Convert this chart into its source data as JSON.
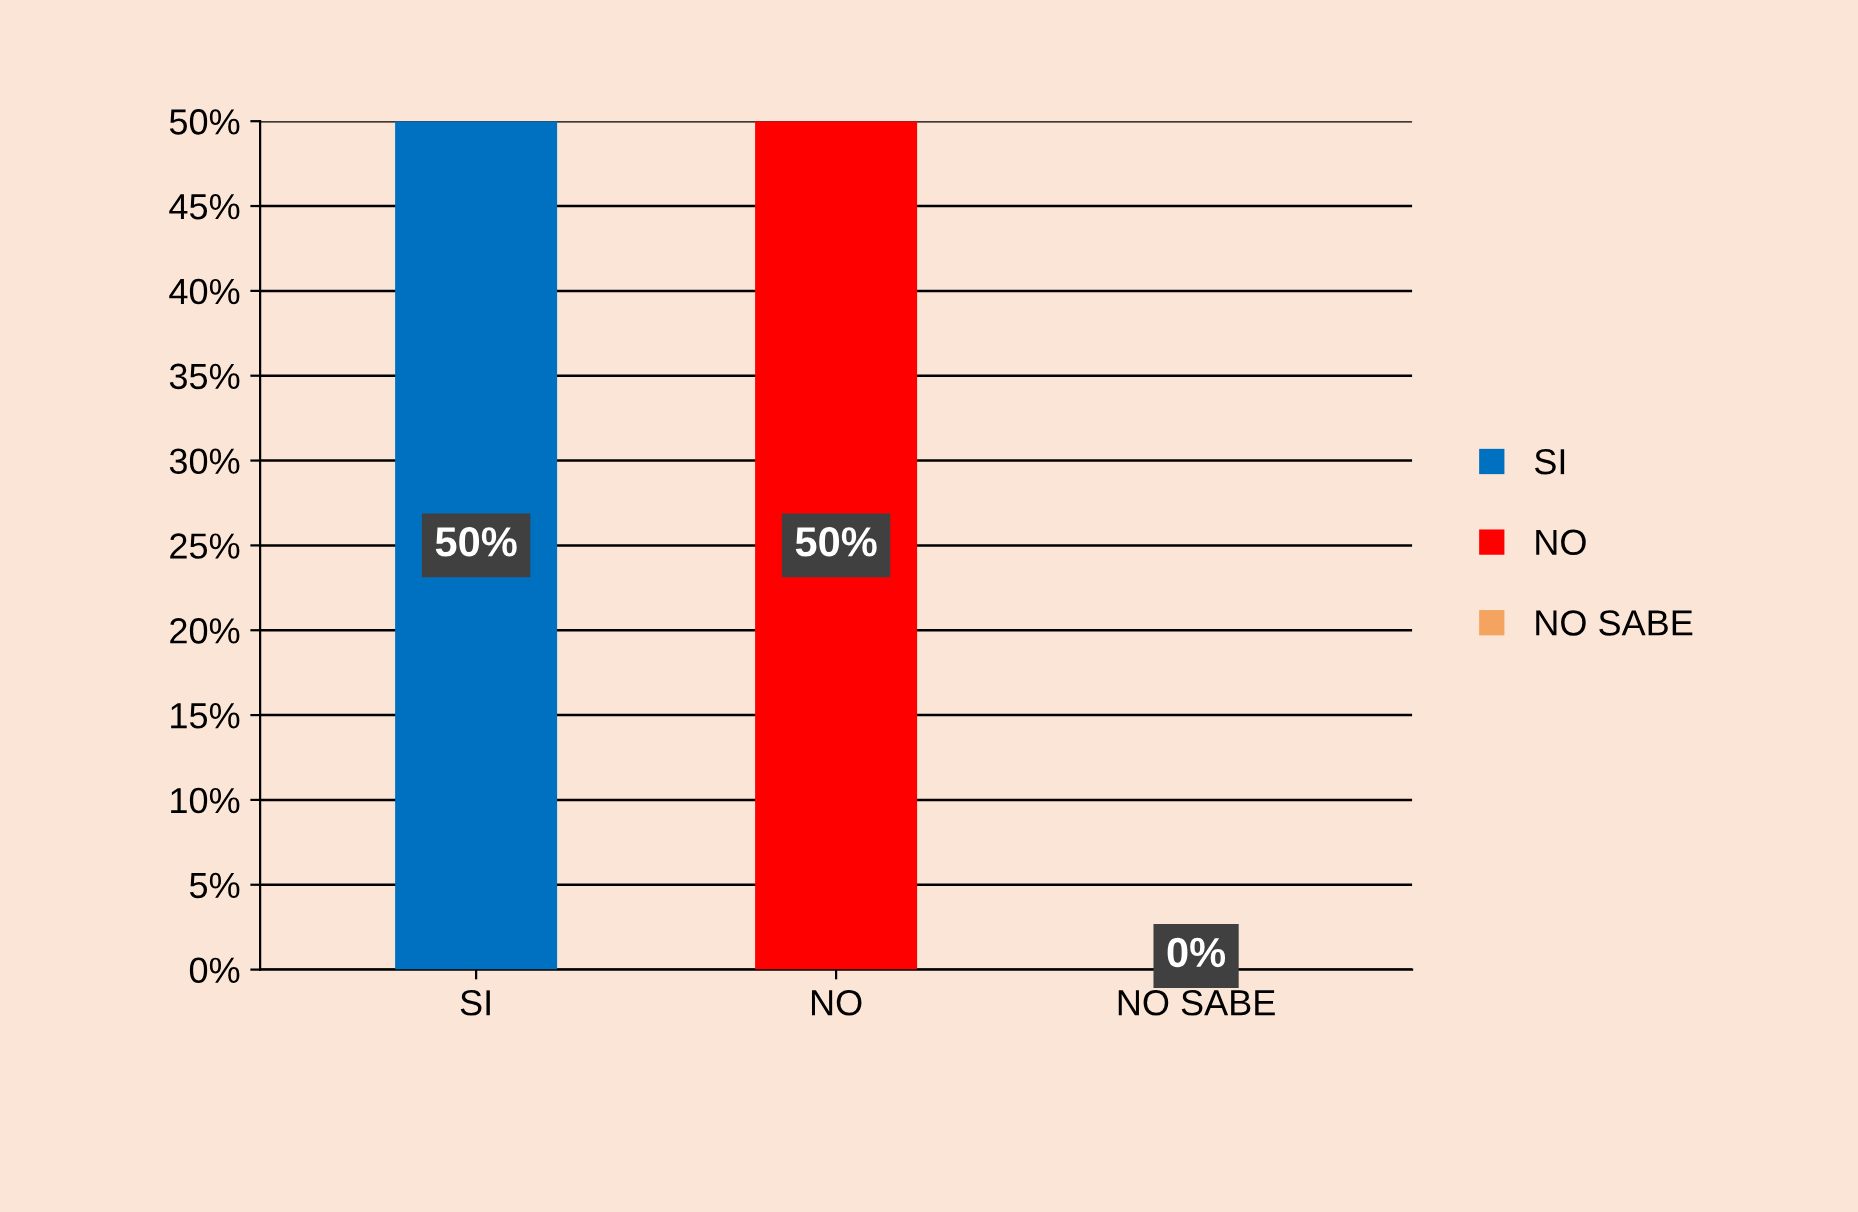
{
  "chart_data": {
    "type": "bar",
    "categories": [
      "SI",
      "NO",
      "NO SABE"
    ],
    "series": [
      {
        "name": "SI",
        "color": "#0070c0",
        "values": [
          50,
          null,
          null
        ],
        "value_labels": [
          "50%",
          null,
          null
        ]
      },
      {
        "name": "NO",
        "color": "#ff0000",
        "values": [
          null,
          50,
          null
        ],
        "value_labels": [
          null,
          "50%",
          null
        ]
      },
      {
        "name": "NO SABE",
        "color": "#f4a460",
        "values": [
          null,
          null,
          0
        ],
        "value_labels": [
          null,
          null,
          "0%"
        ]
      }
    ],
    "ylim": [
      0,
      50
    ],
    "yticks": [
      {
        "value": 0,
        "label": "0%"
      },
      {
        "value": 5,
        "label": "5%"
      },
      {
        "value": 10,
        "label": "10%"
      },
      {
        "value": 15,
        "label": "15%"
      },
      {
        "value": 20,
        "label": "20%"
      },
      {
        "value": 25,
        "label": "25%"
      },
      {
        "value": 30,
        "label": "30%"
      },
      {
        "value": 35,
        "label": "35%"
      },
      {
        "value": 40,
        "label": "40%"
      },
      {
        "value": 45,
        "label": "45%"
      },
      {
        "value": 50,
        "label": "50%"
      }
    ],
    "grid": "y",
    "legend": "right"
  }
}
